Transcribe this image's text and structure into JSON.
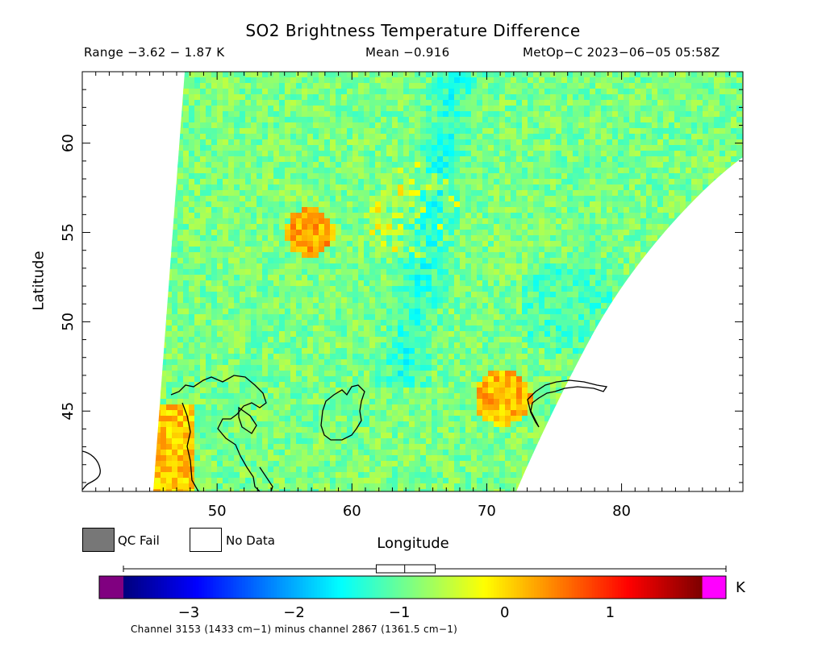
{
  "title": "SO2 Brightness Temperature Difference",
  "subtitle": {
    "range": "Range −3.62 − 1.87 K",
    "mean": "Mean −0.916",
    "satellite_time": "MetOp−C 2023−06−05 05:58Z"
  },
  "axes": {
    "x_label": "Longitude",
    "y_label": "Latitude",
    "x_ticks": [
      "50",
      "60",
      "70",
      "80"
    ],
    "y_ticks": [
      "45",
      "50",
      "55",
      "60"
    ],
    "x_range": [
      40,
      89
    ],
    "y_range": [
      40.5,
      64
    ]
  },
  "legend": {
    "qc_fail_label": "QC Fail",
    "no_data_label": "No Data",
    "qc_fail_color": "#777777",
    "no_data_color": "#ffffff"
  },
  "colorbar": {
    "unit": "K",
    "tick_labels": [
      "−3",
      "−2",
      "−1",
      "0",
      "1"
    ],
    "range": [
      -3.62,
      1.87
    ],
    "low_overflow_color": "#800080",
    "high_overflow_color": "#ff00ff",
    "colormap": [
      "#000080",
      "#0000ff",
      "#0080ff",
      "#00ffff",
      "#80ff80",
      "#ffff00",
      "#ff8000",
      "#ff0000",
      "#800000"
    ],
    "boxplot": {
      "min": -3.62,
      "q1": -1.22,
      "median": -0.95,
      "q3": -0.66,
      "max": 1.87
    }
  },
  "footnote": "Channel 3153 (1433 cm−1) minus channel 2867 (1361.5 cm−1)"
}
